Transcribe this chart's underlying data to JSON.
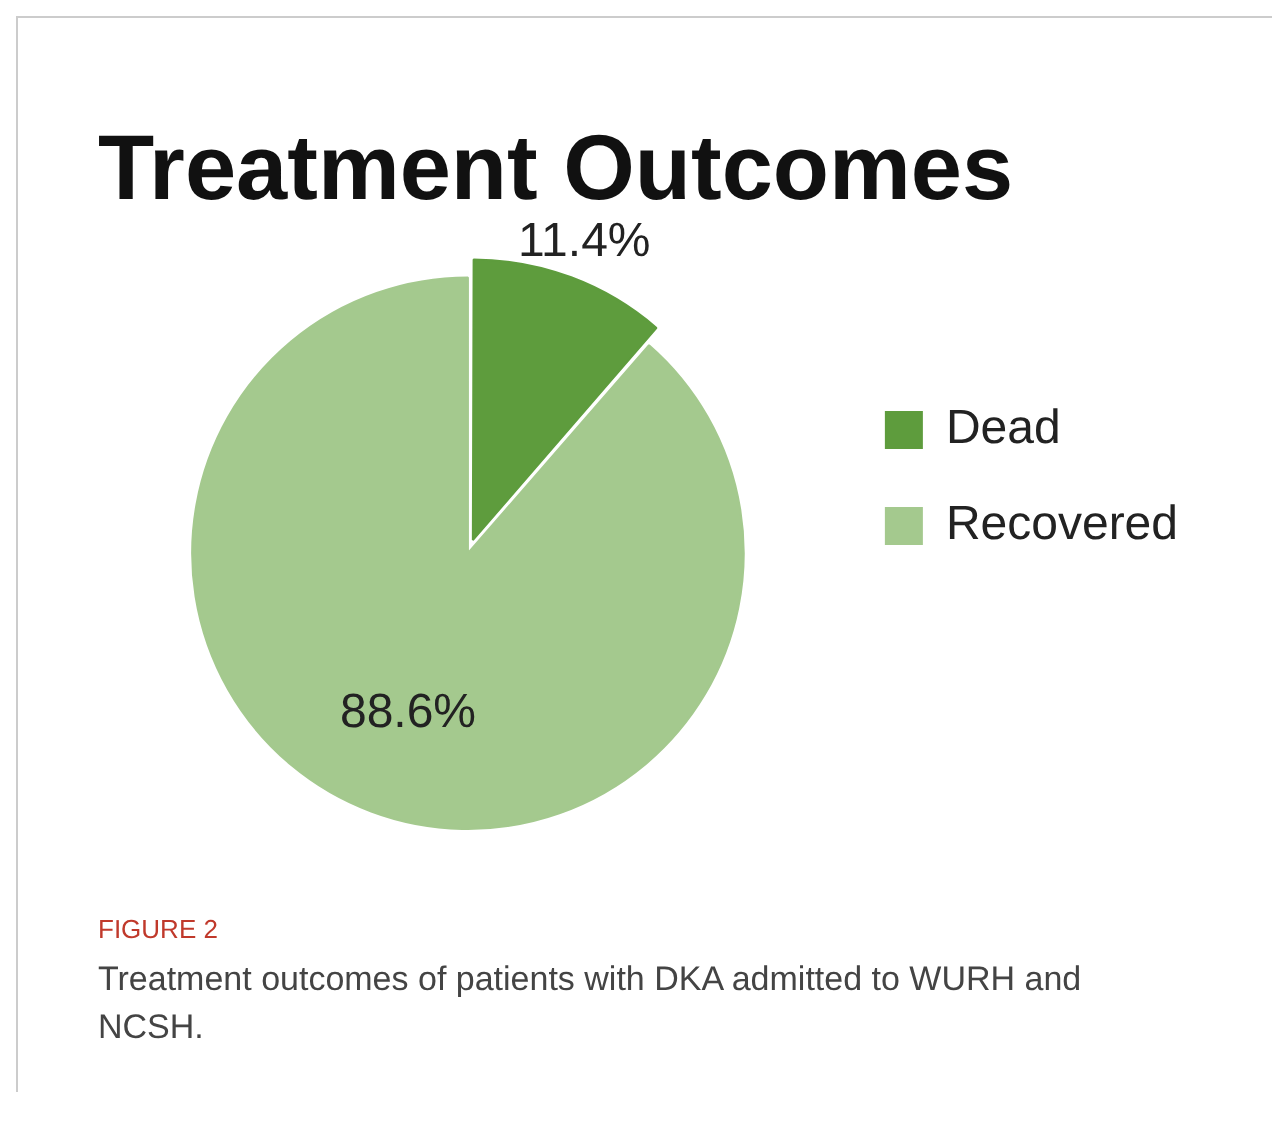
{
  "chart_data": {
    "type": "pie",
    "title": "Treatment Outcomes",
    "categories": [
      "Dead",
      "Recovered"
    ],
    "values": [
      11.4,
      88.6
    ],
    "colors": [
      "#5e9c3d",
      "#a4c98e"
    ],
    "value_labels": [
      "11.4%",
      "88.6%"
    ],
    "legend": "right",
    "annotations": [
      "FIGURE 2",
      "Treatment outcomes of patients with DKA admitted to WURH and NCSH."
    ]
  }
}
